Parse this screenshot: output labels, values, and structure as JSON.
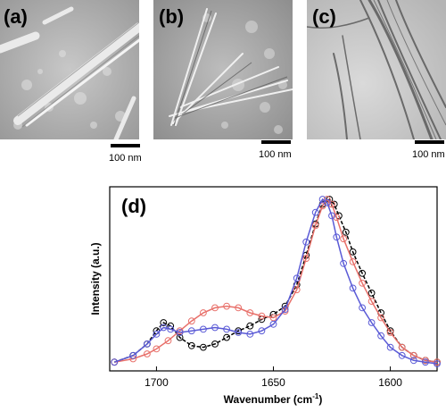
{
  "panels": [
    {
      "label": "(a)",
      "scale_bar": "100 nm"
    },
    {
      "label": "(b)",
      "scale_bar": "100 nm"
    },
    {
      "label": "(c)",
      "scale_bar": "100 nm"
    }
  ],
  "chart_data": {
    "type": "line",
    "panel_label": "(d)",
    "xlabel": "Wavenumber (cm",
    "xlabel_sup": "-1",
    "xlabel_tail": ")",
    "ylabel": "Intensity (a.u.)",
    "xlim": [
      1720,
      1580
    ],
    "ylim": [
      0,
      1
    ],
    "x_ticks": [
      1700,
      1650,
      1600
    ],
    "grid": false,
    "legend": "none",
    "series": [
      {
        "color": "#000000",
        "x": [
          1718,
          1710,
          1704,
          1700,
          1697,
          1694,
          1690,
          1685,
          1680,
          1675,
          1670,
          1665,
          1660,
          1655,
          1650,
          1645,
          1640,
          1636,
          1632,
          1629,
          1626,
          1624,
          1622,
          1619,
          1616,
          1612,
          1608,
          1604,
          1600,
          1595,
          1590,
          1585,
          1580
        ],
        "y": [
          0.01,
          0.05,
          0.12,
          0.2,
          0.25,
          0.23,
          0.16,
          0.11,
          0.1,
          0.12,
          0.16,
          0.2,
          0.23,
          0.27,
          0.3,
          0.35,
          0.48,
          0.66,
          0.85,
          0.97,
          1.0,
          0.97,
          0.9,
          0.8,
          0.68,
          0.55,
          0.43,
          0.31,
          0.2,
          0.1,
          0.05,
          0.02,
          0.01
        ]
      },
      {
        "color": "#e8706a",
        "x": [
          1718,
          1710,
          1704,
          1700,
          1695,
          1690,
          1685,
          1680,
          1675,
          1670,
          1665,
          1660,
          1655,
          1650,
          1645,
          1640,
          1636,
          1632,
          1629,
          1627,
          1625,
          1623,
          1620,
          1616,
          1612,
          1608,
          1604,
          1600,
          1595,
          1590,
          1585,
          1580
        ],
        "y": [
          0.01,
          0.03,
          0.06,
          0.09,
          0.14,
          0.2,
          0.26,
          0.31,
          0.34,
          0.35,
          0.34,
          0.31,
          0.29,
          0.28,
          0.32,
          0.45,
          0.64,
          0.84,
          0.96,
          1.0,
          0.97,
          0.89,
          0.76,
          0.62,
          0.49,
          0.38,
          0.28,
          0.19,
          0.1,
          0.05,
          0.02,
          0.01
        ]
      },
      {
        "color": "#5a5ad6",
        "x": [
          1718,
          1710,
          1704,
          1700,
          1697,
          1694,
          1690,
          1685,
          1680,
          1675,
          1670,
          1665,
          1660,
          1655,
          1650,
          1645,
          1640,
          1636,
          1632,
          1629,
          1627,
          1625,
          1623,
          1620,
          1616,
          1612,
          1608,
          1604,
          1600,
          1595,
          1590,
          1585,
          1580
        ],
        "y": [
          0.01,
          0.05,
          0.12,
          0.18,
          0.22,
          0.21,
          0.19,
          0.2,
          0.21,
          0.22,
          0.21,
          0.19,
          0.18,
          0.2,
          0.24,
          0.33,
          0.52,
          0.74,
          0.92,
          1.0,
          0.98,
          0.9,
          0.77,
          0.61,
          0.46,
          0.34,
          0.25,
          0.17,
          0.1,
          0.05,
          0.02,
          0.01,
          0.0
        ]
      }
    ]
  }
}
